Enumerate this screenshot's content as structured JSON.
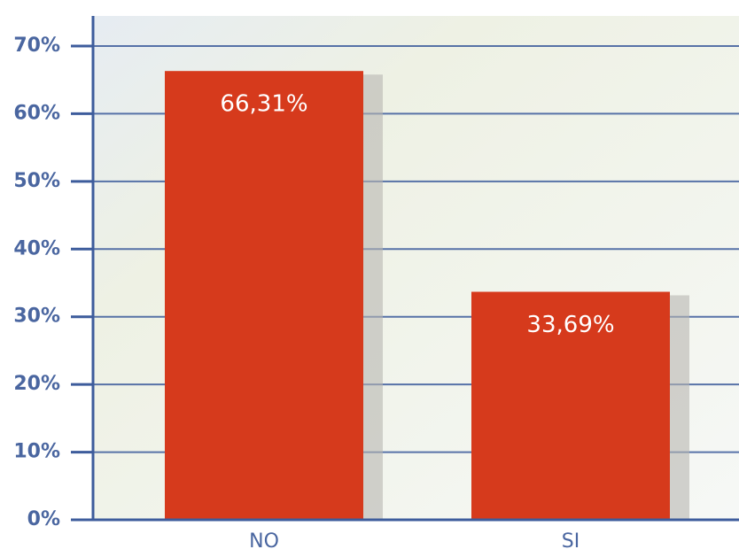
{
  "chart_data": {
    "type": "bar",
    "categories": [
      "NO",
      "SI"
    ],
    "values": [
      66.31,
      33.69
    ],
    "value_labels": [
      "66,31%",
      "33,69%"
    ],
    "color": "#d63a1c",
    "ylim": [
      0,
      70
    ],
    "yticks": [
      {
        "value": 0,
        "label": "0%"
      },
      {
        "value": 10,
        "label": "10%"
      },
      {
        "value": 20,
        "label": "20%"
      },
      {
        "value": 30,
        "label": "30%"
      },
      {
        "value": 40,
        "label": "40%"
      },
      {
        "value": 50,
        "label": "50%"
      },
      {
        "value": 60,
        "label": "60%"
      },
      {
        "value": 70,
        "label": "70%"
      }
    ],
    "grid": true
  }
}
